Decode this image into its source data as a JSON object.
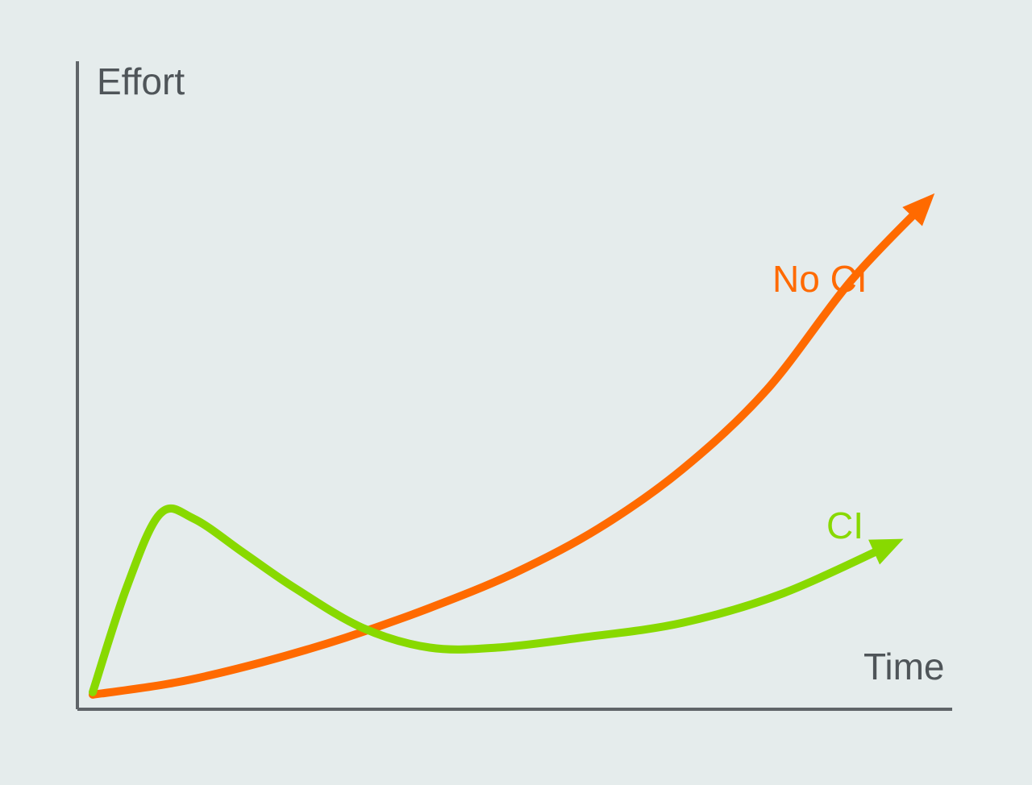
{
  "colors": {
    "background": "#e5ecec",
    "axis": "#5f6468",
    "axis_text": "#4f5559"
  },
  "chart_data": {
    "type": "line",
    "title": "",
    "xlabel": "Time",
    "ylabel": "Effort",
    "x_ticks": [],
    "y_ticks": [],
    "grid": false,
    "legend": "none",
    "xlim": [
      0,
      100
    ],
    "ylim": [
      0,
      100
    ],
    "series": [
      {
        "name": "No CI",
        "color": "#ff6a00",
        "arrow": true,
        "x": [
          0,
          10,
          20,
          30,
          40,
          50,
          60,
          70,
          80,
          90,
          99
        ],
        "y": [
          0.5,
          3,
          7,
          12,
          18,
          25,
          34,
          46,
          62,
          84,
          100
        ]
      },
      {
        "name": "CI",
        "color": "#88d900",
        "arrow": true,
        "x": [
          0,
          4,
          8,
          12,
          18,
          24,
          32,
          40,
          48,
          58,
          70,
          82,
          95
        ],
        "y": [
          1,
          22,
          37,
          36,
          29,
          22,
          14,
          10,
          10,
          12,
          15,
          21,
          31
        ]
      }
    ]
  }
}
